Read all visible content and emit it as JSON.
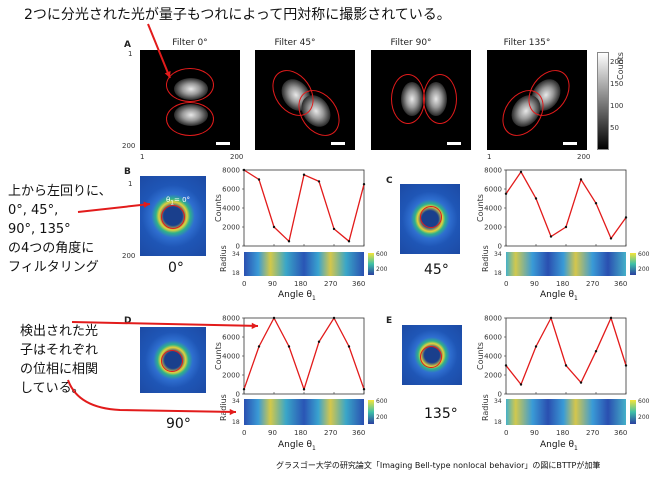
{
  "annotations": {
    "top": "2つに分光された光が量子もつれによって円対称に撮影されている。",
    "left_top": [
      "上から左回りに、",
      "0°, 45°,",
      "90°, 135°",
      "の4つの角度に",
      "フィルタリング"
    ],
    "left_bottom": [
      "検出された光",
      "子はそれぞれ",
      "の位相に相関",
      "している。"
    ],
    "credit": "グラスゴー大学の研究論文「Imaging Bell-type nonlocal behavior」の図にBTTPが加筆"
  },
  "panel_letters": [
    "A",
    "B",
    "C",
    "D",
    "E"
  ],
  "filters": [
    "Filter 0°",
    "Filter 45°",
    "Filter 90°",
    "Filter 135°"
  ],
  "angle_labels": {
    "b": "0°",
    "c": "45°",
    "d": "90°",
    "e": "135°"
  },
  "axis": {
    "counts_label": "Counts",
    "radius_label": "Radius",
    "angle_label": "Angle θ",
    "angle_sub": "1",
    "theta_text": "θ",
    "theta_sub": "1",
    "theta_rest": "= 0°",
    "img_tick_lo": "1",
    "img_tick_hi": "200",
    "x_ticks": [
      "0",
      "90",
      "180",
      "270",
      "360"
    ],
    "radius_ticks": [
      "18",
      "34"
    ],
    "cbar_ticks": [
      "200",
      "600"
    ],
    "grey_cbar_ticks": [
      "200",
      "150",
      "100",
      "50"
    ]
  },
  "chart_data": [
    {
      "type": "scatter",
      "panel": "B",
      "x": [
        0,
        45,
        90,
        135,
        180,
        225,
        270,
        315,
        360
      ],
      "y": [
        8000,
        7000,
        2000,
        500,
        7500,
        6800,
        1800,
        500,
        6500
      ],
      "ylim": [
        0,
        8000
      ],
      "yticks": [
        0,
        2000,
        4000,
        6000,
        8000
      ]
    },
    {
      "type": "scatter",
      "panel": "C",
      "x": [
        0,
        45,
        90,
        135,
        180,
        225,
        270,
        315,
        360
      ],
      "y": [
        5500,
        7800,
        5000,
        1000,
        2000,
        7000,
        4500,
        800,
        3000
      ],
      "ylim": [
        0,
        8000
      ],
      "yticks": [
        0,
        2000,
        4000,
        6000,
        8000
      ]
    },
    {
      "type": "scatter",
      "panel": "D",
      "x": [
        0,
        45,
        90,
        135,
        180,
        225,
        270,
        315,
        360
      ],
      "y": [
        500,
        5000,
        8000,
        5000,
        500,
        5500,
        8000,
        5000,
        500
      ],
      "ylim": [
        0,
        8000
      ],
      "yticks": [
        0,
        2000,
        4000,
        6000,
        8000
      ]
    },
    {
      "type": "scatter",
      "panel": "E",
      "x": [
        0,
        45,
        90,
        135,
        180,
        225,
        270,
        315,
        360
      ],
      "y": [
        3000,
        1000,
        5000,
        8000,
        3000,
        1200,
        4500,
        8000,
        3000
      ],
      "ylim": [
        0,
        8000
      ],
      "yticks": [
        0,
        2000,
        4000,
        6000,
        8000
      ]
    }
  ]
}
